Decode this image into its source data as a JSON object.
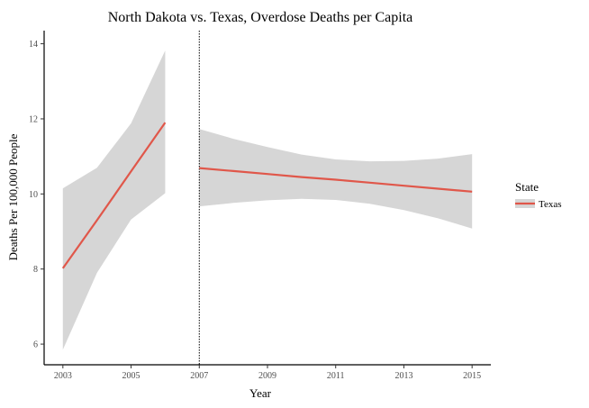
{
  "chart_data": {
    "type": "line",
    "title": "North Dakota vs. Texas, Overdose Deaths per Capita",
    "xlabel": "Year",
    "ylabel": "Deaths Per 100,000 People",
    "xlim": [
      2002.45,
      2015.55
    ],
    "ylim": [
      5.45,
      14.35
    ],
    "x_ticks": [
      2003,
      2005,
      2007,
      2009,
      2011,
      2013,
      2015
    ],
    "y_ticks": [
      6,
      8,
      10,
      12,
      14
    ],
    "grid": false,
    "legend_position": "right",
    "legend_title": "State",
    "policy_line_x": 2007,
    "series": [
      {
        "name": "Texas",
        "color": "#e0574a",
        "segments": [
          {
            "x": [
              2003,
              2004,
              2005,
              2006
            ],
            "y": [
              8.02,
              9.3,
              10.6,
              11.9
            ],
            "ci_low": [
              5.85,
              7.9,
              9.32,
              10.02
            ],
            "ci_high": [
              10.15,
              10.7,
              11.88,
              13.82
            ]
          },
          {
            "x": [
              2007,
              2008,
              2009,
              2010,
              2011,
              2012,
              2013,
              2014,
              2015
            ],
            "y": [
              10.69,
              10.61,
              10.53,
              10.45,
              10.38,
              10.3,
              10.22,
              10.14,
              10.06
            ],
            "ci_low": [
              9.67,
              9.76,
              9.83,
              9.87,
              9.84,
              9.74,
              9.57,
              9.35,
              9.08
            ],
            "ci_high": [
              11.73,
              11.47,
              11.25,
              11.05,
              10.92,
              10.87,
              10.88,
              10.94,
              11.06
            ]
          }
        ]
      }
    ],
    "ribbon_color": "#d6d6d6"
  }
}
